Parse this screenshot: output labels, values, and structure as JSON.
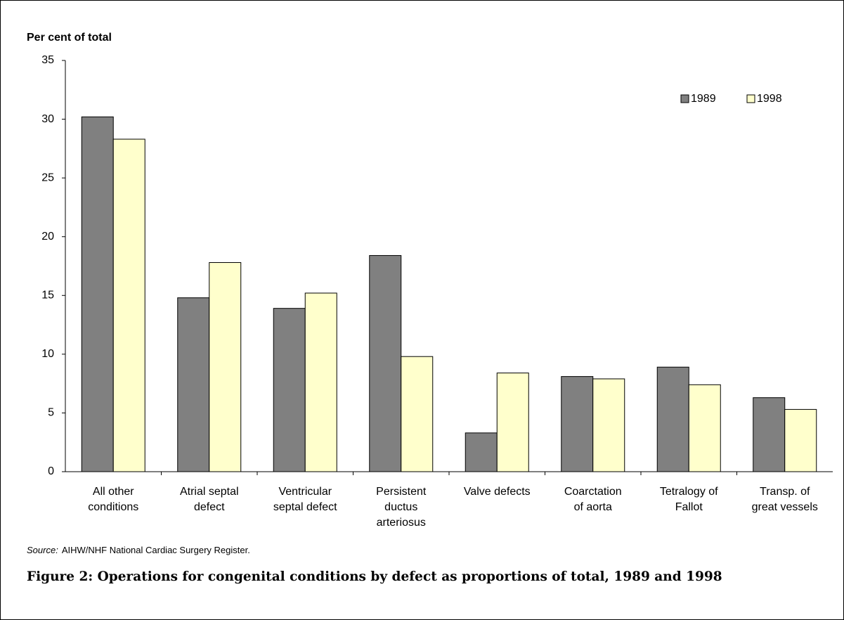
{
  "chart_data": {
    "type": "bar",
    "y_axis_label": "Per cent of total",
    "categories": [
      "All other\nconditions",
      "Atrial septal\ndefect",
      "Ventricular\nseptal defect",
      "Persistent\nductus\narteriosus",
      "Valve defects",
      "Coarctation\nof aorta",
      "Tetralogy of\nFallot",
      "Transp. of\ngreat vessels"
    ],
    "series": [
      {
        "name": "1989",
        "color": "#808080",
        "values": [
          30.2,
          14.8,
          13.9,
          18.4,
          3.3,
          8.1,
          8.9,
          6.3
        ]
      },
      {
        "name": "1998",
        "color": "#ffffcc",
        "values": [
          28.3,
          17.8,
          15.2,
          9.8,
          8.4,
          7.9,
          7.4,
          5.3
        ]
      }
    ],
    "ylim": [
      0,
      35
    ],
    "yticks": [
      0,
      5,
      10,
      15,
      20,
      25,
      30,
      35
    ],
    "legend": "top-right",
    "source_label": "Source:",
    "source_text": "AIHW/NHF National Cardiac Surgery Register.",
    "caption": "Figure 2: Operations for congenital conditions by defect as proportions of total, 1989 and 1998"
  }
}
